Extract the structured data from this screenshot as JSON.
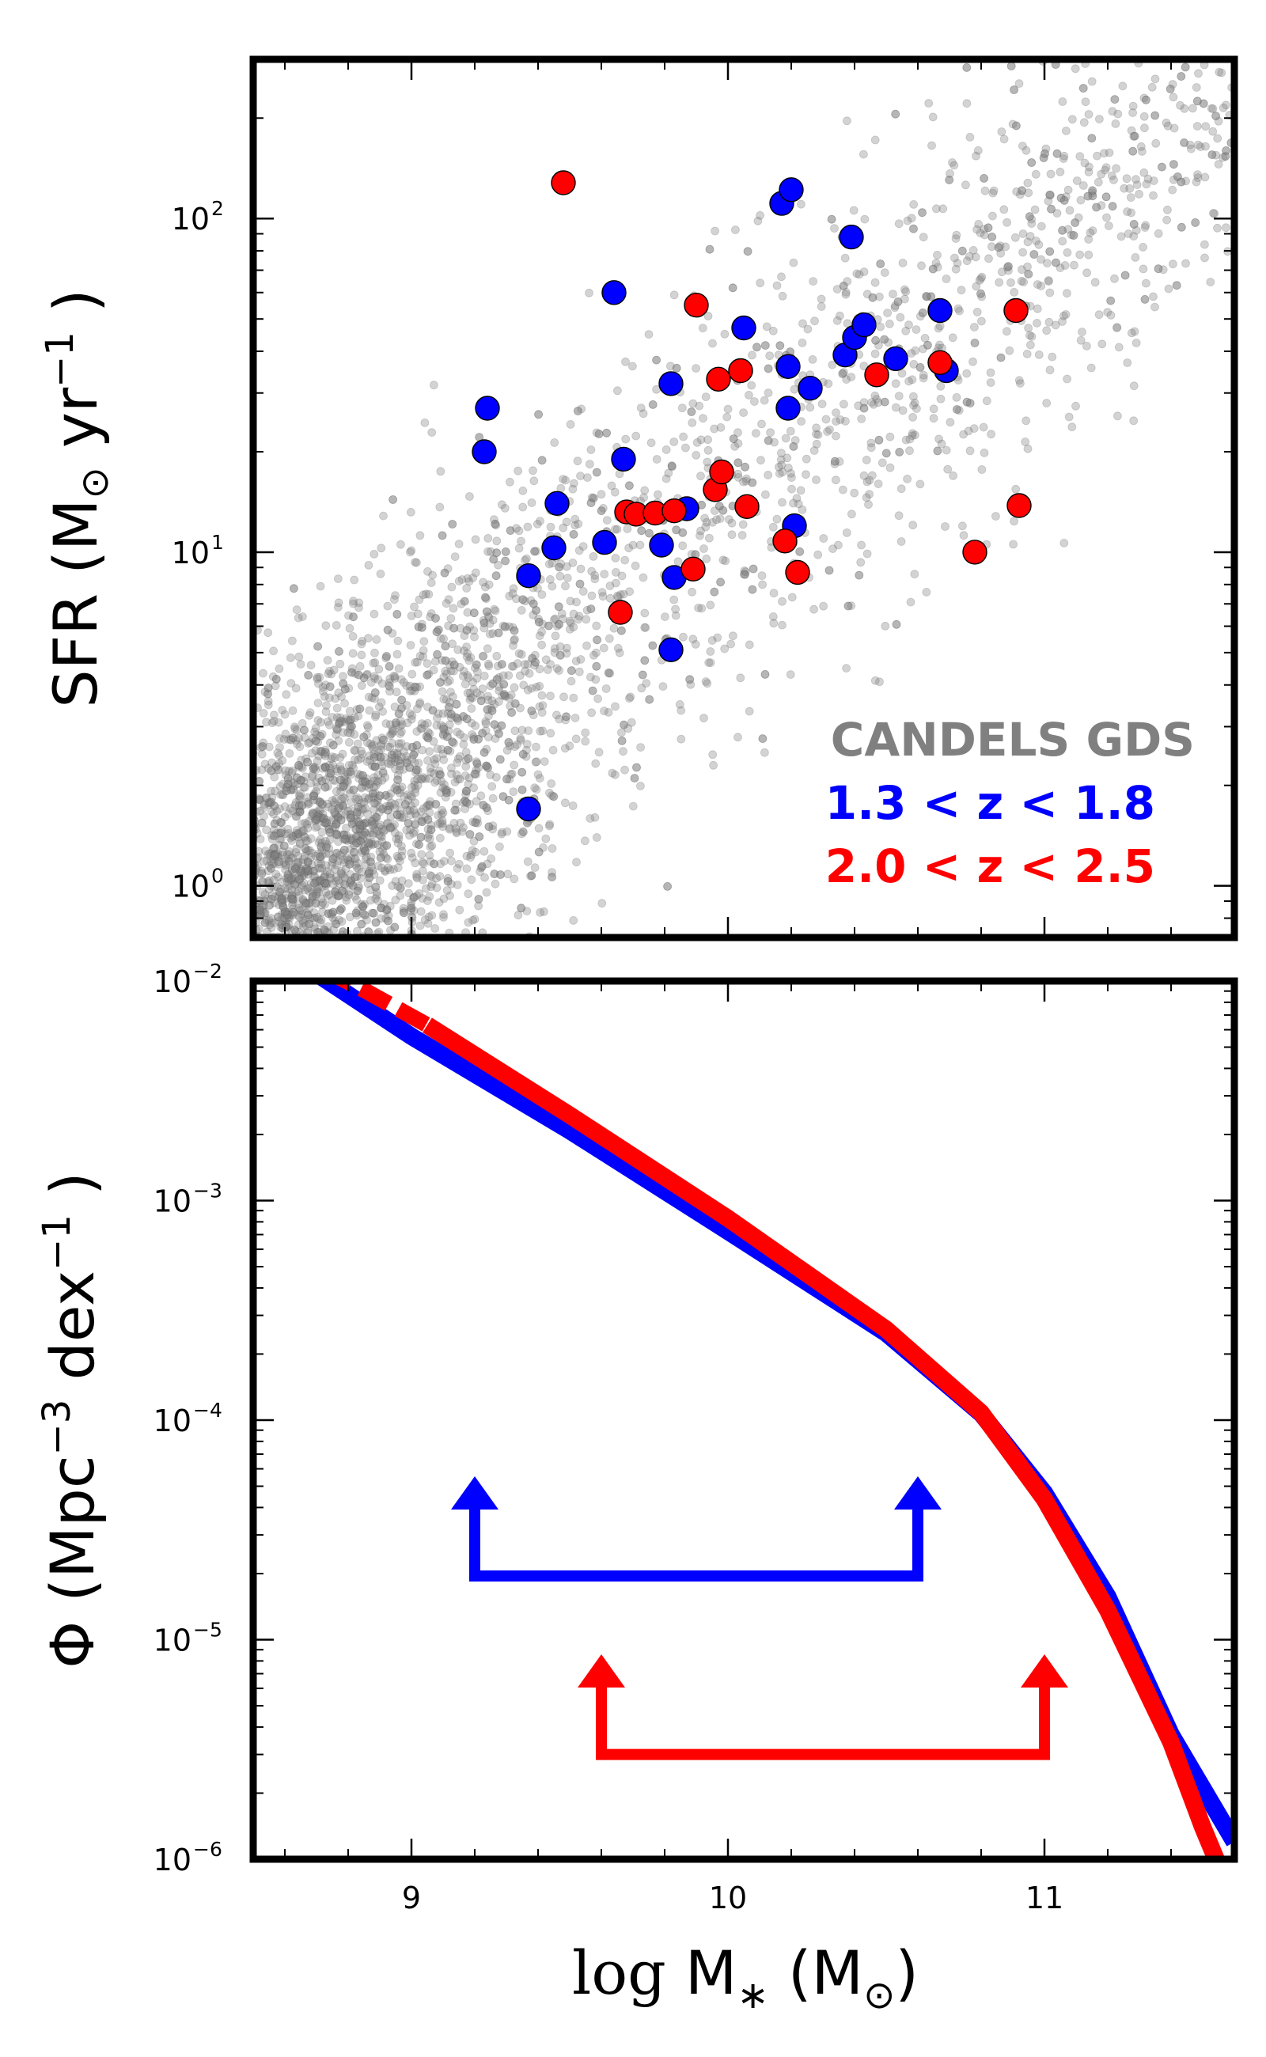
{
  "chart_data": [
    {
      "type": "scatter",
      "panel": "top",
      "ylabel": "SFR (M⊙ yr−1)",
      "yscale": "log",
      "xlim": [
        8.5,
        11.6
      ],
      "ylim": [
        0.7,
        300
      ],
      "ytick_labels": [
        "10",
        "10",
        "10"
      ],
      "ytick_exponents": [
        "0",
        "1",
        "2"
      ],
      "ytick_values": [
        1,
        10,
        100
      ],
      "grid": false,
      "legend_position": "lower-right",
      "background_sample": {
        "name": "CANDELS GDS",
        "color": "#808080",
        "description_hidden": true
      },
      "legend": [
        {
          "label": "CANDELS GDS",
          "color": "#808080"
        },
        {
          "label": "1.3 < z < 1.8",
          "color": "#0000ff"
        },
        {
          "label": "2.0 < z < 2.5",
          "color": "#ff0000"
        }
      ],
      "series": [
        {
          "name": "1.3 < z < 1.8",
          "color": "#0000ff",
          "points": [
            [
              9.24,
              27
            ],
            [
              9.23,
              20
            ],
            [
              9.37,
              8.5
            ],
            [
              9.37,
              1.7
            ],
            [
              9.45,
              10.3
            ],
            [
              9.46,
              14
            ],
            [
              9.61,
              10.7
            ],
            [
              9.64,
              60
            ],
            [
              9.67,
              19
            ],
            [
              9.79,
              10.5
            ],
            [
              9.82,
              32
            ],
            [
              9.82,
              5.1
            ],
            [
              9.83,
              8.4
            ],
            [
              9.87,
              13.5
            ],
            [
              10.05,
              47
            ],
            [
              10.17,
              111
            ],
            [
              10.2,
              122
            ],
            [
              10.19,
              36
            ],
            [
              10.19,
              27
            ],
            [
              10.21,
              12
            ],
            [
              10.26,
              31
            ],
            [
              10.37,
              39
            ],
            [
              10.39,
              88
            ],
            [
              10.4,
              44
            ],
            [
              10.43,
              48
            ],
            [
              10.53,
              38
            ],
            [
              10.67,
              53
            ],
            [
              10.69,
              35
            ]
          ]
        },
        {
          "name": "2.0 < z < 2.5",
          "color": "#ff0000",
          "points": [
            [
              9.48,
              128
            ],
            [
              9.66,
              6.6
            ],
            [
              9.68,
              13.2
            ],
            [
              9.71,
              13
            ],
            [
              9.77,
              13.1
            ],
            [
              9.83,
              13.3
            ],
            [
              9.89,
              8.9
            ],
            [
              9.9,
              55
            ],
            [
              9.96,
              15.4
            ],
            [
              9.97,
              33
            ],
            [
              9.98,
              17.4
            ],
            [
              10.04,
              35
            ],
            [
              10.06,
              13.7
            ],
            [
              10.18,
              10.8
            ],
            [
              10.22,
              8.7
            ],
            [
              10.47,
              34
            ],
            [
              10.67,
              37
            ],
            [
              10.78,
              10
            ],
            [
              10.91,
              53
            ],
            [
              10.92,
              13.8
            ]
          ]
        }
      ]
    },
    {
      "type": "line",
      "panel": "bottom",
      "xlabel": "log M* (M⊙)",
      "ylabel": "Φ (Mpc−3 dex−1)",
      "xscale": "linear",
      "yscale": "log",
      "xlim": [
        8.5,
        11.6
      ],
      "ylim": [
        1e-06,
        0.01
      ],
      "xtick_labels": [
        "9",
        "10",
        "11"
      ],
      "xtick_values": [
        9,
        10,
        11
      ],
      "ytick_labels": [
        "10",
        "10",
        "10",
        "10",
        "10"
      ],
      "ytick_exponents": [
        "−6",
        "−5",
        "−4",
        "−3",
        "−2"
      ],
      "ytick_values": [
        1e-06,
        1e-05,
        0.0001,
        0.001,
        0.01
      ],
      "grid": false,
      "series": [
        {
          "name": "1.3 < z < 1.8",
          "color": "#0000ff",
          "style": "solid",
          "points": [
            [
              8.7,
              0.0108
            ],
            [
              9.0,
              0.0056
            ],
            [
              9.5,
              0.00208
            ],
            [
              10.0,
              0.000725
            ],
            [
              10.5,
              0.000249
            ],
            [
              10.8,
              0.000107
            ],
            [
              11.0,
              4.66e-05
            ],
            [
              11.2,
              1.57e-05
            ],
            [
              11.4,
              3.7e-06
            ],
            [
              11.6,
              1.2e-06
            ]
          ]
        },
        {
          "name": "2.0 < z < 2.5",
          "color": "#ff0000",
          "style": "solid",
          "points": [
            [
              9.05,
              0.0063
            ],
            [
              9.5,
              0.00245
            ],
            [
              10.0,
              0.00083
            ],
            [
              10.5,
              0.000259
            ],
            [
              10.8,
              0.000108
            ],
            [
              11.0,
              4.36e-05
            ],
            [
              11.2,
              1.36e-05
            ],
            [
              11.4,
              3.4e-06
            ],
            [
              11.5,
              1.4e-06
            ],
            [
              11.55,
              9.4e-07
            ]
          ]
        },
        {
          "name": "2.0 < z < 2.5 (extrapolated)",
          "color": "#ff0000",
          "style": "dashed",
          "points": [
            [
              8.72,
              0.0113
            ],
            [
              8.85,
              0.0091
            ],
            [
              9.05,
              0.0063
            ]
          ]
        }
      ],
      "mass_range_arrows": [
        {
          "name": "1.3 < z < 1.8",
          "color": "#0000ff",
          "x_range": [
            9.2,
            10.6
          ],
          "y_level": 1.95e-05,
          "arrow_top": 4.4e-05
        },
        {
          "name": "2.0 < z < 2.5",
          "color": "#ff0000",
          "x_range": [
            9.6,
            11.0
          ],
          "y_level": 3e-06,
          "arrow_top": 6.8e-06
        }
      ]
    }
  ]
}
